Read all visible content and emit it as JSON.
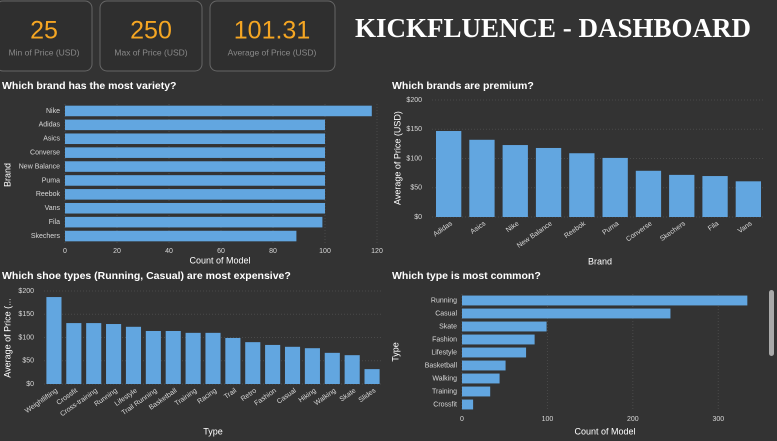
{
  "header": {
    "title": "KICKFLUENCE - DASHBOARD"
  },
  "kpis": [
    {
      "value": 25,
      "label": "Min of Price (USD)"
    },
    {
      "value": 250,
      "label": "Max of Price (USD)"
    },
    {
      "value": 101.31,
      "label": "Average of Price (USD)"
    }
  ],
  "chart_data": [
    {
      "type": "barh",
      "title": "Which brand has the most variety?",
      "x_label": "Count of Model",
      "y_label": "Brand",
      "color": "#62a6e0",
      "grid": true,
      "categories": [
        "Nike",
        "Adidas",
        "Asics",
        "Converse",
        "New Balance",
        "Puma",
        "Reebok",
        "Vans",
        "Fila",
        "Skechers"
      ],
      "values": [
        118,
        100,
        100,
        100,
        100,
        100,
        100,
        100,
        99,
        89
      ],
      "xlim": [
        0,
        120
      ],
      "xticks": [
        0,
        20,
        40,
        60,
        80,
        100,
        120
      ]
    },
    {
      "type": "bar",
      "title": "Which brands are premium?",
      "x_label": "Brand",
      "y_label": "Average of Price (USD)",
      "color": "#62a6e0",
      "grid": true,
      "categories": [
        "Adidas",
        "Asics",
        "Nike",
        "New Balance",
        "Reebok",
        "Puma",
        "Converse",
        "Skechers",
        "Fila",
        "Vans"
      ],
      "values": [
        147,
        132,
        123,
        118,
        109,
        101,
        79,
        72,
        70,
        61
      ],
      "ylim": [
        0,
        200
      ],
      "yticks": [
        {
          "value": 0,
          "label": "$0"
        },
        {
          "value": 50,
          "label": "$50"
        },
        {
          "value": 100,
          "label": "$100"
        },
        {
          "value": 150,
          "label": "$150"
        },
        {
          "value": 200,
          "label": "$200"
        }
      ]
    },
    {
      "type": "bar",
      "title": "Which shoe types (Running, Casual) are most expensive?",
      "x_label": "Type",
      "y_label": "Average of Price (...",
      "color": "#62a6e0",
      "grid": true,
      "categories": [
        "Weightlifting",
        "Crossfit",
        "Cross-training",
        "Running",
        "Lifestyle",
        "Trail Running",
        "Basketball",
        "Training",
        "Racing",
        "Trail",
        "Retro",
        "Fashion",
        "Casual",
        "Hiking",
        "Walking",
        "Skate",
        "Slides"
      ],
      "values": [
        187,
        131,
        131,
        129,
        123,
        114,
        114,
        110,
        110,
        99,
        90,
        84,
        80,
        77,
        67,
        62,
        32
      ],
      "ylim": [
        0,
        200
      ],
      "yticks": [
        {
          "value": 0,
          "label": "$0"
        },
        {
          "value": 50,
          "label": "$50"
        },
        {
          "value": 100,
          "label": "$100"
        },
        {
          "value": 150,
          "label": "$150"
        },
        {
          "value": 200,
          "label": "$200"
        }
      ]
    },
    {
      "type": "barh",
      "title": "Which type is most common?",
      "x_label": "Count of Model",
      "y_label": "Type",
      "color": "#62a6e0",
      "grid": true,
      "categories": [
        "Running",
        "Casual",
        "Skate",
        "Fashion",
        "Lifestyle",
        "Basketball",
        "Walking",
        "Training",
        "Crossfit"
      ],
      "values": [
        334,
        244,
        99,
        85,
        75,
        51,
        44,
        33,
        13
      ],
      "xlim": [
        0,
        350
      ],
      "xticks": [
        0,
        100,
        200,
        300
      ]
    }
  ]
}
